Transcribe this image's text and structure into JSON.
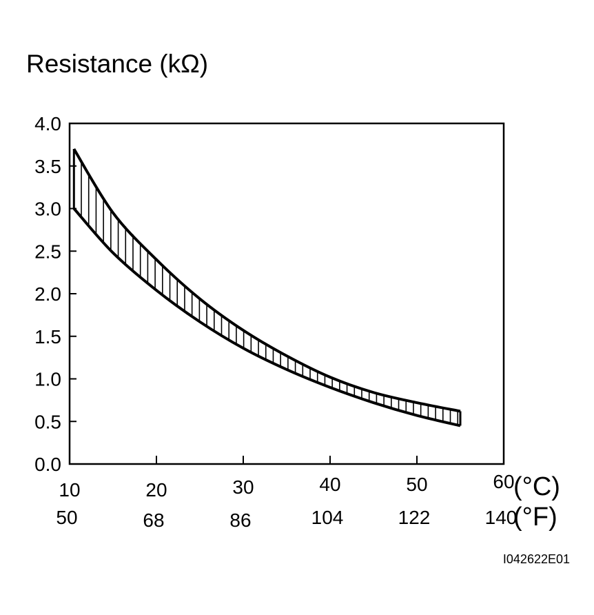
{
  "chart_data": {
    "type": "area",
    "title": "",
    "ylabel": "Resistance (kΩ)",
    "xlabel": "",
    "ylim": [
      0.0,
      4.0
    ],
    "xlim": [
      10,
      60
    ],
    "yticks": [
      "0.0",
      "0.5",
      "1.0",
      "1.5",
      "2.0",
      "2.5",
      "3.0",
      "3.5",
      "4.0"
    ],
    "xticks_c": [
      "10",
      "20",
      "30",
      "40",
      "50",
      "60"
    ],
    "xticks_f": [
      "50",
      "68",
      "86",
      "104",
      "122",
      "140"
    ],
    "unit_c": "(°C)",
    "unit_f": "(°F)",
    "grid": false,
    "series": [
      {
        "x": [
          10.5,
          15,
          20,
          25,
          30,
          35,
          40,
          45,
          50,
          55
        ],
        "values": [
          3.0,
          2.48,
          2.04,
          1.67,
          1.36,
          1.11,
          0.9,
          0.72,
          0.57,
          0.45
        ]
      },
      {
        "x": [
          10.5,
          15,
          20,
          25,
          30,
          35,
          40,
          45,
          50,
          55
        ],
        "values": [
          3.7,
          2.95,
          2.4,
          1.94,
          1.57,
          1.27,
          1.02,
          0.84,
          0.72,
          0.62
        ]
      }
    ],
    "colors": {
      "line": "#000000",
      "hatch": "#000000"
    }
  },
  "figure_ref": "I042622E01"
}
